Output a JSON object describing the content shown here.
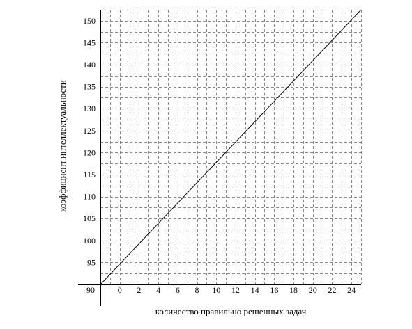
{
  "chart_data": {
    "type": "line",
    "title": "",
    "xlabel": "количество правильно решенных задач",
    "ylabel": "коэффициент интеллектуальности",
    "origin_label": "90",
    "x_ticks": [
      0,
      2,
      4,
      6,
      8,
      10,
      12,
      14,
      16,
      18,
      20,
      22,
      24
    ],
    "y_ticks": [
      95,
      100,
      105,
      110,
      115,
      120,
      125,
      130,
      135,
      140,
      145,
      150
    ],
    "xlim": [
      -2,
      25
    ],
    "ylim": [
      90,
      152.5
    ],
    "grid": true,
    "series": [
      {
        "x": [
          -2,
          25
        ],
        "y": [
          90,
          152.5
        ]
      }
    ]
  }
}
